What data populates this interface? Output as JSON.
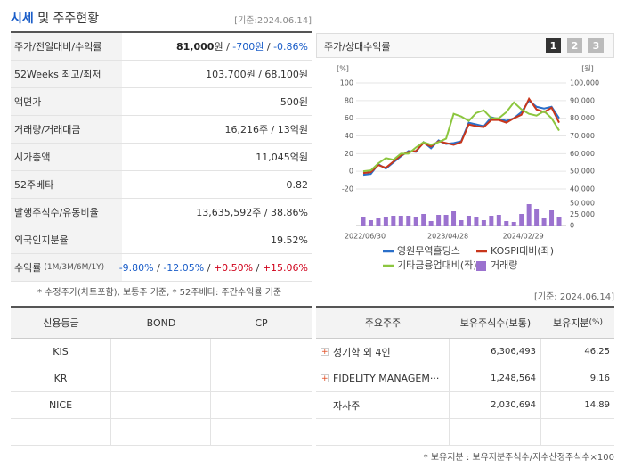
{
  "header": {
    "title": "시세",
    "title_rest": "및 주주현황",
    "date": "[기준:2024.06.14]"
  },
  "summary": {
    "rows": [
      {
        "label": "주가/전일대비/수익률",
        "value": [
          {
            "text": "81,000",
            "color": "#222",
            "bold": true
          },
          {
            "text": "원 / ",
            "color": "#333"
          },
          {
            "text": "-700원",
            "color": "#1a5dc8"
          },
          {
            "text": " / ",
            "color": "#333"
          },
          {
            "text": "-0.86%",
            "color": "#1a5dc8"
          }
        ]
      },
      {
        "label": "52Weeks 최고/최저",
        "value": "103,700원 / 68,100원"
      },
      {
        "label": "액면가",
        "value": "500원"
      },
      {
        "label": "거래량/거래대금",
        "value": "16,216주 / 13억원"
      },
      {
        "label": "시가총액",
        "value": "11,045억원"
      },
      {
        "label": "52주베타",
        "value": "0.82"
      },
      {
        "label": "발행주식수/유동비율",
        "value": "13,635,592주 / 38.86%"
      },
      {
        "label": "외국인지분율",
        "value": "19.52%"
      },
      {
        "label": "수익률",
        "label_small": "(1M/3M/6M/1Y)",
        "value": [
          {
            "text": "-9.80%",
            "color": "#1a5dc8"
          },
          {
            "text": " / ",
            "color": "#333"
          },
          {
            "text": "-12.05%",
            "color": "#1a5dc8"
          },
          {
            "text": " / ",
            "color": "#333"
          },
          {
            "text": "+0.50%",
            "color": "#d0021b"
          },
          {
            "text": " / ",
            "color": "#333"
          },
          {
            "text": "+15.06%",
            "color": "#d0021b"
          }
        ]
      }
    ],
    "footnote": "* 수정주가(차트포함), 보통주 기준, * 52주베타: 주간수익률 기준"
  },
  "chart_data": {
    "type": "line",
    "title": "주가/상대수익률",
    "tabs": [
      "1",
      "2",
      "3"
    ],
    "ylabel": "[%]",
    "y2label": "[원]",
    "categories": [
      "2022/06/30",
      null,
      null,
      null,
      null,
      null,
      null,
      null,
      null,
      null,
      null,
      "2023/04/28",
      null,
      null,
      null,
      null,
      null,
      null,
      null,
      null,
      null,
      "2024/02/29",
      null,
      null,
      null,
      null,
      null
    ],
    "ylim": [
      -20,
      100
    ],
    "yticks": [
      100,
      80,
      60,
      40,
      20,
      0,
      -20
    ],
    "y2lim": [
      40000,
      100000
    ],
    "y2ticks": [
      {
        "value": 100000,
        "label": "100,000"
      },
      {
        "value": 90000,
        "label": "90,000"
      },
      {
        "value": 80000,
        "label": "80,000"
      },
      {
        "value": 70000,
        "label": "70,000"
      },
      {
        "value": 60000,
        "label": "60,000"
      },
      {
        "value": 50000,
        "label": "50,000"
      },
      {
        "value": 40000,
        "label": "40,000"
      }
    ],
    "volume_lim": [
      0,
      50000
    ],
    "volume_ticks": [
      {
        "value": 50000,
        "label": "50,000"
      },
      {
        "value": 25000,
        "label": "25,000"
      },
      0
    ],
    "grid": true,
    "series": [
      {
        "name": "영원무역홀딩스",
        "color": "#2a6fc9",
        "axis": "y2",
        "values": [
          48000,
          48500,
          54000,
          51500,
          55000,
          58500,
          61500,
          61000,
          66500,
          63000,
          67500,
          65500,
          66000,
          67000,
          77500,
          76500,
          75500,
          80500,
          79500,
          78500,
          80000,
          83500,
          90000,
          86500,
          85500,
          86500,
          80000
        ]
      },
      {
        "name": "KOSPI대비(좌)",
        "color": "#c8361b",
        "values": [
          -2,
          -1,
          7,
          4,
          11,
          18,
          22,
          23,
          32,
          28,
          34,
          32,
          30,
          33,
          53,
          51,
          50,
          58,
          58,
          55,
          60,
          64,
          82,
          70,
          67,
          72,
          55
        ]
      },
      {
        "name": "기타금융업대비(좌)",
        "color": "#8cc63f",
        "values": [
          0,
          1,
          9,
          15,
          13,
          20,
          20,
          27,
          33,
          30,
          33,
          37,
          65,
          62,
          57,
          66,
          69,
          60,
          60,
          67,
          78,
          70,
          65,
          63,
          68,
          60,
          46
        ]
      }
    ],
    "volume": {
      "name": "거래량",
      "color": "#9b72cf",
      "values": [
        20000,
        12000,
        18000,
        20000,
        22000,
        22000,
        22000,
        20000,
        26000,
        10000,
        24000,
        24000,
        32000,
        12000,
        22000,
        20000,
        12000,
        22000,
        24000,
        10000,
        8000,
        26000,
        48000,
        38000,
        16000,
        34000,
        20000
      ]
    }
  },
  "credit": {
    "headers": [
      "신용등급",
      "BOND",
      "CP"
    ],
    "rows": [
      "KIS",
      "KR",
      "NICE"
    ]
  },
  "holders": {
    "date": "[기준: 2024.06.14]",
    "headers": [
      "주요주주",
      "보유주식수(보통)",
      "보유지분"
    ],
    "header_small": "(%)",
    "rows": [
      [
        "성기학 외 4인",
        "6,306,493",
        "46.25"
      ],
      [
        "FIDELITY MANAGEM···",
        "1,248,564",
        "9.16"
      ],
      [
        "자사주",
        "2,030,694",
        "14.89"
      ]
    ],
    "plus": [
      true,
      true,
      false
    ],
    "footnote": "* 보유지분 : 보유지분주식수/지수산정주식수×100"
  }
}
